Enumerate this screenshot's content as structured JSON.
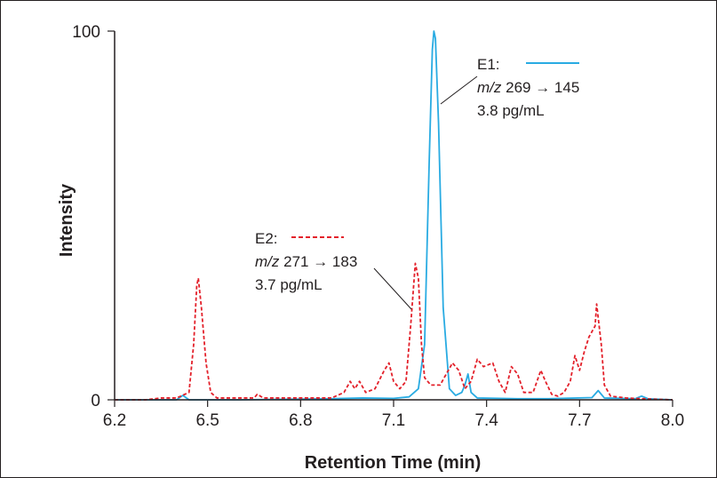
{
  "chart_data": {
    "type": "line",
    "title": "",
    "xlabel": "Retention Time (min)",
    "ylabel": "Intensity",
    "xlim": [
      6.2,
      8.0
    ],
    "ylim": [
      0,
      100
    ],
    "x_ticks": [
      "6.2",
      "6.5",
      "6.8",
      "7.1",
      "7.4",
      "7.7",
      "8.0"
    ],
    "y_ticks": [
      "0",
      "100"
    ],
    "grid": false,
    "series": [
      {
        "name": "E1",
        "transition_prefix": "m/z",
        "transition": "269 → 145",
        "concentration": "3.8 pg/mL",
        "color": "#29abe2",
        "style": "solid",
        "points": [
          [
            6.2,
            0
          ],
          [
            6.4,
            0
          ],
          [
            6.42,
            1.2
          ],
          [
            6.44,
            0
          ],
          [
            6.6,
            0
          ],
          [
            6.9,
            0.3
          ],
          [
            7.0,
            0.5
          ],
          [
            7.1,
            0.4
          ],
          [
            7.15,
            0.8
          ],
          [
            7.18,
            3
          ],
          [
            7.2,
            15
          ],
          [
            7.215,
            65
          ],
          [
            7.225,
            95
          ],
          [
            7.23,
            100
          ],
          [
            7.235,
            98
          ],
          [
            7.245,
            75
          ],
          [
            7.26,
            25
          ],
          [
            7.28,
            3
          ],
          [
            7.3,
            1.2
          ],
          [
            7.32,
            2
          ],
          [
            7.33,
            4
          ],
          [
            7.34,
            7
          ],
          [
            7.35,
            2
          ],
          [
            7.37,
            0.5
          ],
          [
            7.5,
            0.3
          ],
          [
            7.6,
            0.3
          ],
          [
            7.74,
            0.6
          ],
          [
            7.76,
            2.5
          ],
          [
            7.78,
            0.5
          ],
          [
            7.88,
            0.3
          ],
          [
            7.9,
            1
          ],
          [
            7.92,
            0.3
          ],
          [
            8.0,
            0
          ]
        ]
      },
      {
        "name": "E2",
        "transition_prefix": "m/z",
        "transition": "271 → 183",
        "concentration": "3.7 pg/mL",
        "color": "#e3202a",
        "style": "dashed",
        "points": [
          [
            6.2,
            0
          ],
          [
            6.3,
            0
          ],
          [
            6.35,
            0.5
          ],
          [
            6.4,
            0.5
          ],
          [
            6.44,
            2
          ],
          [
            6.455,
            15
          ],
          [
            6.465,
            31
          ],
          [
            6.47,
            33
          ],
          [
            6.48,
            25
          ],
          [
            6.495,
            10
          ],
          [
            6.51,
            2
          ],
          [
            6.53,
            0.5
          ],
          [
            6.6,
            0.5
          ],
          [
            6.65,
            0.5
          ],
          [
            6.66,
            1.5
          ],
          [
            6.68,
            0.5
          ],
          [
            6.8,
            0.5
          ],
          [
            6.9,
            0.5
          ],
          [
            6.94,
            2
          ],
          [
            6.96,
            5
          ],
          [
            6.975,
            3
          ],
          [
            6.99,
            5
          ],
          [
            7.01,
            2
          ],
          [
            7.04,
            3
          ],
          [
            7.07,
            8
          ],
          [
            7.085,
            10
          ],
          [
            7.1,
            5
          ],
          [
            7.12,
            3
          ],
          [
            7.14,
            5
          ],
          [
            7.155,
            20
          ],
          [
            7.17,
            37
          ],
          [
            7.18,
            33
          ],
          [
            7.19,
            15
          ],
          [
            7.2,
            6
          ],
          [
            7.22,
            4
          ],
          [
            7.25,
            4
          ],
          [
            7.27,
            7
          ],
          [
            7.29,
            10
          ],
          [
            7.31,
            8
          ],
          [
            7.33,
            3
          ],
          [
            7.35,
            5
          ],
          [
            7.37,
            11
          ],
          [
            7.39,
            9
          ],
          [
            7.42,
            10
          ],
          [
            7.44,
            5
          ],
          [
            7.46,
            2
          ],
          [
            7.48,
            9
          ],
          [
            7.5,
            7
          ],
          [
            7.52,
            2
          ],
          [
            7.55,
            2
          ],
          [
            7.575,
            8
          ],
          [
            7.59,
            5
          ],
          [
            7.61,
            1.5
          ],
          [
            7.63,
            1
          ],
          [
            7.65,
            2
          ],
          [
            7.67,
            5
          ],
          [
            7.685,
            12
          ],
          [
            7.7,
            8
          ],
          [
            7.715,
            13
          ],
          [
            7.73,
            17
          ],
          [
            7.75,
            20
          ],
          [
            7.755,
            26
          ],
          [
            7.77,
            15
          ],
          [
            7.78,
            4
          ],
          [
            7.8,
            1
          ],
          [
            7.85,
            0.5
          ],
          [
            7.9,
            0.3
          ],
          [
            8.0,
            0
          ]
        ]
      }
    ]
  }
}
